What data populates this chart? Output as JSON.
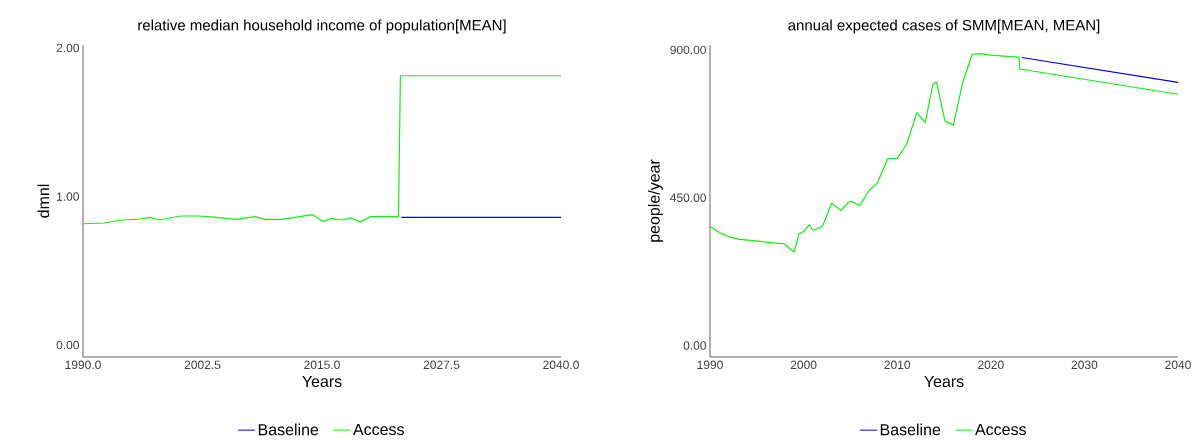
{
  "chart_data": [
    {
      "type": "line",
      "title": "relative median household income of population[MEAN]",
      "xlabel": "Years",
      "ylabel": "dmnl",
      "xlim": [
        1990,
        2040
      ],
      "ylim": [
        -0.08,
        2.02
      ],
      "xticks": [
        {
          "value": 1990,
          "label": "1990.0"
        },
        {
          "value": 2002.5,
          "label": "2002.5"
        },
        {
          "value": 2015,
          "label": "2015.0"
        },
        {
          "value": 2027.5,
          "label": "2027.5"
        },
        {
          "value": 2040,
          "label": "2040.0"
        }
      ],
      "yticks": [
        {
          "value": 0,
          "label": "0.00"
        },
        {
          "value": 1,
          "label": "1.00"
        },
        {
          "value": 2,
          "label": "2.00"
        }
      ],
      "legend": "bottom",
      "grid": false,
      "series": [
        {
          "name": "Baseline",
          "color": "#0000ee",
          "x": [
            2023.3,
            2040
          ],
          "values": [
            0.86,
            0.86
          ]
        },
        {
          "name": "Access",
          "color": "#11ee11",
          "x": [
            1990,
            1992.2,
            1994.1,
            1996,
            1997,
            1998,
            2000.2,
            2002,
            2003.8,
            2006,
            2008,
            2009,
            2010.8,
            2012,
            2014,
            2015.1,
            2016,
            2017.1,
            2018,
            2019,
            2020.1,
            2023,
            2023.2,
            2040
          ],
          "values": [
            0.817,
            0.822,
            0.842,
            0.849,
            0.86,
            0.842,
            0.869,
            0.869,
            0.862,
            0.846,
            0.865,
            0.846,
            0.846,
            0.858,
            0.878,
            0.833,
            0.851,
            0.842,
            0.856,
            0.828,
            0.865,
            0.865,
            1.813,
            1.813
          ]
        }
      ]
    },
    {
      "type": "line",
      "title": "annual expected cases of SMM[MEAN, MEAN]",
      "xlabel": "Years",
      "ylabel": "people/year",
      "xlim": [
        1990,
        2040
      ],
      "ylim": [
        -35,
        915
      ],
      "xticks": [
        1990,
        2000,
        2010,
        2020,
        2030,
        2040
      ],
      "yticks": [
        {
          "value": 0,
          "label": "0.00"
        },
        {
          "value": 450,
          "label": "450.00"
        },
        {
          "value": 900,
          "label": "900.00"
        }
      ],
      "legend": "bottom",
      "grid": false,
      "series": [
        {
          "name": "Baseline",
          "color": "#0000ee",
          "x": [
            2023.3,
            2040
          ],
          "values": [
            877,
            801
          ]
        },
        {
          "name": "Access",
          "color": "#11ee11",
          "x": [
            1990,
            1991,
            1992,
            1993.2,
            1995.1,
            1997,
            1997.9,
            1999,
            1999.5,
            2000,
            2000.6,
            2001,
            2002,
            2003,
            2004,
            2004.8,
            2005.1,
            2006,
            2007,
            2007.9,
            2009,
            2010,
            2011,
            2012.1,
            2013,
            2013.8,
            2014.2,
            2015.1,
            2016,
            2017,
            2018,
            2018.8,
            2020,
            2023,
            2023.1,
            2040
          ],
          "values": [
            362,
            344,
            331,
            323,
            318,
            312,
            310,
            285,
            340,
            347,
            367,
            351,
            362,
            433,
            411,
            437,
            439,
            426,
            472,
            496,
            569,
            570,
            612,
            709,
            679,
            794,
            803,
            684,
            671,
            801,
            886,
            889,
            884,
            878,
            842,
            765
          ]
        }
      ]
    }
  ]
}
